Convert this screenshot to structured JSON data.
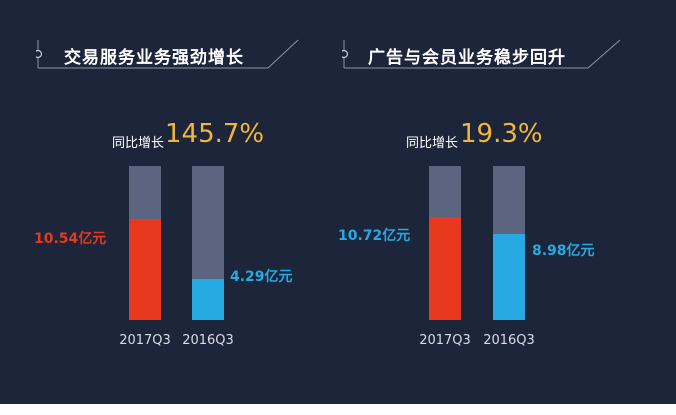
{
  "chart_data": [
    {
      "type": "bar",
      "title": "交易服务业务强劲增长",
      "growth_label": "同比增长",
      "growth_value": "145.7%",
      "categories": [
        "2017Q3",
        "2016Q3"
      ],
      "values": [
        10.54,
        4.29
      ],
      "value_labels": [
        "10.54亿元",
        "4.29亿元"
      ],
      "colors": [
        "#e8381d",
        "#27a9e1"
      ],
      "ylim": [
        0,
        16
      ]
    },
    {
      "type": "bar",
      "title": "广告与会员业务稳步回升",
      "growth_label": "同比增长",
      "growth_value": "19.3%",
      "categories": [
        "2017Q3",
        "2016Q3"
      ],
      "values": [
        10.72,
        8.98
      ],
      "value_labels": [
        "10.72亿元",
        "8.98亿元"
      ],
      "colors": [
        "#e8381d",
        "#27a9e1"
      ],
      "ylim": [
        0,
        16
      ]
    }
  ],
  "colors": {
    "background": "#1c2539",
    "track": "#5c6580",
    "growth": "#f2b73a",
    "current_label": "#e8381d",
    "previous_label": "#27a9e1"
  }
}
